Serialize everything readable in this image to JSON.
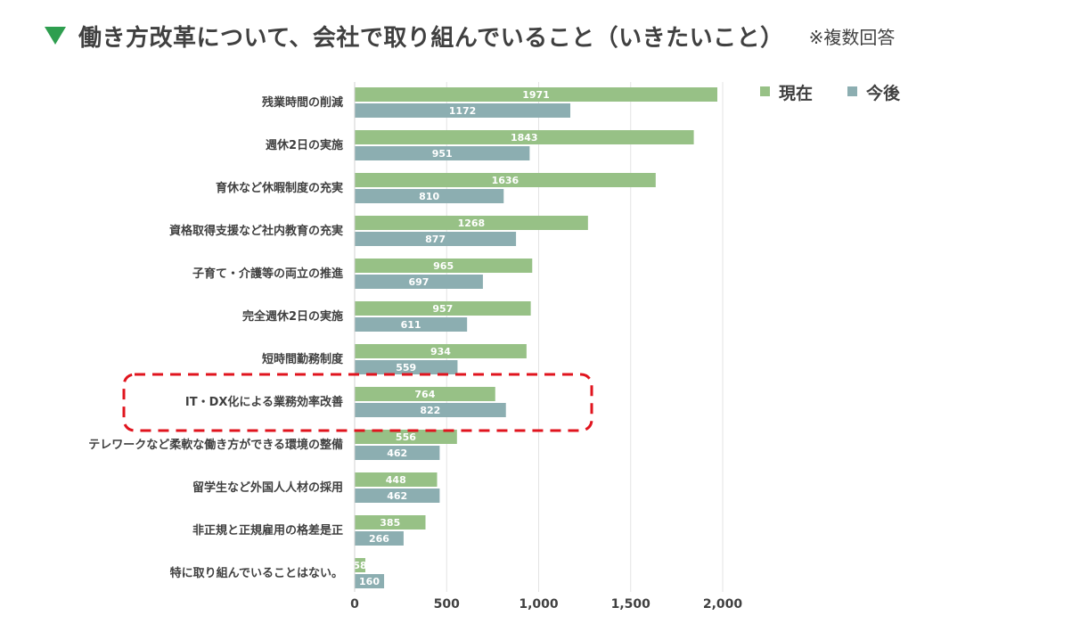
{
  "header": {
    "title": "働き方改革について、会社で取り組んでいること（いきたいこと）",
    "subtitle": "※複数回答"
  },
  "chart_data": {
    "type": "bar",
    "orientation": "horizontal",
    "categories": [
      "残業時間の削減",
      "週休2日の実施",
      "育休など休暇制度の充実",
      "資格取得支援など社内教育の充実",
      "子育て・介護等の両立の推進",
      "完全週休2日の実施",
      "短時間勤務制度",
      "IT・DX化による業務効率改善",
      "テレワークなど柔軟な働き方ができる環境の整備",
      "留学生など外国人人材の採用",
      "非正規と正規雇用の格差是正",
      "特に取り組んでいることはない。"
    ],
    "series": [
      {
        "name": "現在",
        "color": "#97c186",
        "values": [
          1971,
          1843,
          1636,
          1268,
          965,
          957,
          934,
          764,
          556,
          448,
          385,
          58
        ]
      },
      {
        "name": "今後",
        "color": "#8caeb1",
        "values": [
          1172,
          951,
          810,
          877,
          697,
          611,
          559,
          822,
          462,
          462,
          266,
          160
        ]
      }
    ],
    "xlim": [
      0,
      2000
    ],
    "xticks": [
      "0",
      "500",
      "1,000",
      "1,500",
      "2,000"
    ],
    "xtick_values": [
      0,
      500,
      1000,
      1500,
      2000
    ],
    "grid": true,
    "legend": "top-right",
    "highlight_category": "IT・DX化による業務効率改善",
    "highlight_color": "#e0141e"
  }
}
